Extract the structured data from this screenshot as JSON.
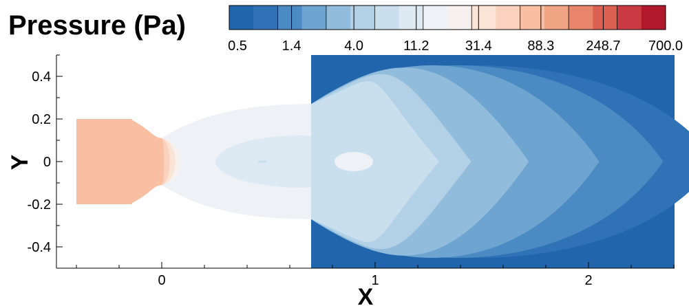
{
  "chart_data": {
    "type": "heatmap",
    "title": "Pressure (Pa)",
    "xlabel": "X",
    "ylabel": "Y",
    "xlim": [
      -0.5,
      2.4
    ],
    "ylim": [
      -0.5,
      0.5
    ],
    "x_ticks": [
      {
        "value": 0,
        "label": "0"
      },
      {
        "value": 1,
        "label": "1"
      },
      {
        "value": 2,
        "label": "2"
      }
    ],
    "y_ticks": [
      {
        "value": 0.4,
        "label": "0.4"
      },
      {
        "value": 0.2,
        "label": "0.2"
      },
      {
        "value": 0,
        "label": "0"
      },
      {
        "value": -0.2,
        "label": "-0.2"
      },
      {
        "value": -0.4,
        "label": "-0.4"
      }
    ],
    "colorbar": {
      "scale": "log",
      "min": 0.5,
      "max": 700.0,
      "levels": 18,
      "tick_labels": [
        "0.5",
        "1.4",
        "4.0",
        "11.2",
        "31.4",
        "88.3",
        "248.7",
        "700.0"
      ],
      "colors": [
        "#2166ac",
        "#2f73b6",
        "#4b8ac3",
        "#6ea4d0",
        "#92bcdc",
        "#b2d1e6",
        "#cadfee",
        "#dde9f3",
        "#eef2f6",
        "#f6f1ef",
        "#fbe3d6",
        "#fbd2bd",
        "#f8bfa3",
        "#f1a585",
        "#e9856a",
        "#dc6153",
        "#c93a43",
        "#b2182b"
      ]
    },
    "regions": [
      {
        "name": "inlet",
        "x_range": [
          -0.4,
          -0.15
        ],
        "y_range": [
          -0.2,
          0.2
        ],
        "pressure_level": 12
      },
      {
        "name": "nozzle-throat",
        "x": 0.0,
        "half_width": 0.11
      },
      {
        "name": "plume",
        "x_range": [
          0.0,
          0.7
        ],
        "y_edge_at_exit": 0.27
      },
      {
        "name": "chamber",
        "x_range": [
          0.7,
          2.4
        ],
        "y_range": [
          -0.5,
          0.5
        ]
      }
    ]
  }
}
